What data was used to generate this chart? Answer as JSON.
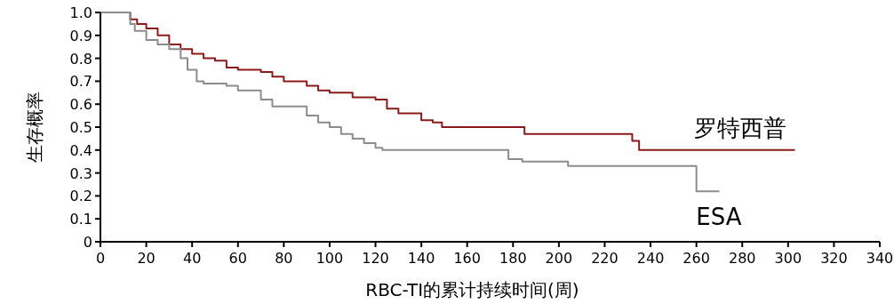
{
  "chart_data": {
    "type": "step",
    "xlabel": "RBC-TI的累计持续时间(周)",
    "ylabel": "生存概率",
    "xlim": [
      0,
      340
    ],
    "xticks": [
      0,
      20,
      40,
      60,
      80,
      100,
      120,
      140,
      160,
      180,
      200,
      220,
      240,
      260,
      280,
      300,
      320,
      340
    ],
    "ylim": [
      0,
      1
    ],
    "yticks": [
      0,
      0.1,
      0.2,
      0.3,
      0.4,
      0.5,
      0.6,
      0.7,
      0.8,
      0.9,
      {
        "value": 1,
        "label": "1.0"
      }
    ],
    "grid": false,
    "legend": false,
    "marker": "none",
    "line_style": "solid",
    "series": [
      {
        "name": "罗特西普",
        "color": "#8b1a1a",
        "x": [
          0,
          13,
          16,
          20,
          25,
          30,
          35,
          40,
          45,
          50,
          55,
          60,
          70,
          75,
          80,
          90,
          95,
          100,
          110,
          120,
          125,
          130,
          140,
          145,
          149,
          185,
          232,
          235,
          303
        ],
        "values": [
          1.0,
          0.97,
          0.95,
          0.93,
          0.9,
          0.86,
          0.84,
          0.82,
          0.8,
          0.79,
          0.76,
          0.75,
          0.74,
          0.72,
          0.7,
          0.68,
          0.66,
          0.65,
          0.63,
          0.62,
          0.58,
          0.56,
          0.53,
          0.52,
          0.5,
          0.47,
          0.44,
          0.4,
          0.4
        ]
      },
      {
        "name": "ESA",
        "color": "#8c8c8c",
        "x": [
          0,
          13,
          15,
          20,
          25,
          30,
          35,
          38,
          42,
          45,
          55,
          60,
          70,
          75,
          85,
          90,
          95,
          100,
          105,
          110,
          115,
          120,
          123,
          178,
          184,
          204,
          260,
          270
        ],
        "values": [
          1.0,
          0.95,
          0.92,
          0.88,
          0.86,
          0.84,
          0.8,
          0.75,
          0.7,
          0.69,
          0.68,
          0.66,
          0.62,
          0.59,
          0.59,
          0.55,
          0.52,
          0.5,
          0.47,
          0.45,
          0.43,
          0.41,
          0.4,
          0.36,
          0.35,
          0.33,
          0.22,
          0.22
        ]
      }
    ]
  }
}
